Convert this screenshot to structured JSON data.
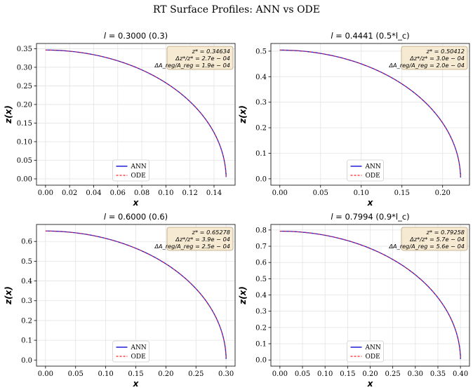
{
  "suptitle": "RT Surface Profiles: ANN vs ODE",
  "colors": {
    "ann": "#1f1fd6",
    "ode": "#ff2020",
    "infobox_bg": "#f7ead2",
    "infobox_border": "#b8a27a",
    "grid": "#e3e3e3"
  },
  "legend": {
    "ann": "ANN",
    "ode": "ODE"
  },
  "chart_data": [
    {
      "type": "line",
      "title": "$l = 0.3000$ (0.3)",
      "title_text": "l = 0.3000 (0.3)",
      "title_var": "l",
      "title_rest": " = 0.3000 (0.3)",
      "xlabel": "x",
      "ylabel": "z(x)",
      "xlim": [
        -0.0075,
        0.1575
      ],
      "ylim": [
        -0.017,
        0.364
      ],
      "xticks": [
        0.0,
        0.02,
        0.04,
        0.06,
        0.08,
        0.1,
        0.12,
        0.14
      ],
      "xtick_labels": [
        "0.00",
        "0.02",
        "0.04",
        "0.06",
        "0.08",
        "0.10",
        "0.12",
        "0.14"
      ],
      "yticks": [
        0.0,
        0.05,
        0.1,
        0.15,
        0.2,
        0.25,
        0.3,
        0.35
      ],
      "ytick_labels": [
        "0.00",
        "0.05",
        "0.10",
        "0.15",
        "0.20",
        "0.25",
        "0.30",
        "0.35"
      ],
      "half_width": 0.15,
      "z_star": 0.34634,
      "z_end": 0.005,
      "series": [
        {
          "name": "ANN"
        },
        {
          "name": "ODE"
        }
      ],
      "info": [
        "z* = 0.34634",
        "Δz*/z* = 2.7e − 04",
        "ΔA_reg/A_reg = 1.9e − 04"
      ]
    },
    {
      "type": "line",
      "title": "$l = 0.4441$ (0.5*l_c)",
      "title_text": "l = 0.4441 (0.5*l_c)",
      "title_var": "l",
      "title_rest": " = 0.4441 (0.5*l_c)",
      "xlabel": "x",
      "ylabel": "z(x)",
      "xlim": [
        -0.011,
        0.233
      ],
      "ylim": [
        -0.025,
        0.53
      ],
      "xticks": [
        0.0,
        0.05,
        0.1,
        0.15,
        0.2
      ],
      "xtick_labels": [
        "0.00",
        "0.05",
        "0.10",
        "0.15",
        "0.20"
      ],
      "yticks": [
        0.0,
        0.1,
        0.2,
        0.3,
        0.4,
        0.5
      ],
      "ytick_labels": [
        "0.0",
        "0.1",
        "0.2",
        "0.3",
        "0.4",
        "0.5"
      ],
      "half_width": 0.222,
      "z_star": 0.50412,
      "z_end": 0.005,
      "series": [
        {
          "name": "ANN"
        },
        {
          "name": "ODE"
        }
      ],
      "info": [
        "z* = 0.50412",
        "Δz*/z* = 3.0e − 04",
        "ΔA_reg/A_reg = 2.0e − 04"
      ]
    },
    {
      "type": "line",
      "title": "$l = 0.6000$ (0.6)",
      "title_text": "l = 0.6000 (0.6)",
      "title_var": "l",
      "title_rest": " = 0.6000 (0.6)",
      "xlabel": "x",
      "ylabel": "z(x)",
      "xlim": [
        -0.015,
        0.315
      ],
      "ylim": [
        -0.031,
        0.686
      ],
      "xticks": [
        0.0,
        0.05,
        0.1,
        0.15,
        0.2,
        0.25,
        0.3
      ],
      "xtick_labels": [
        "0.00",
        "0.05",
        "0.10",
        "0.15",
        "0.20",
        "0.25",
        "0.30"
      ],
      "yticks": [
        0.0,
        0.1,
        0.2,
        0.3,
        0.4,
        0.5,
        0.6
      ],
      "ytick_labels": [
        "0.0",
        "0.1",
        "0.2",
        "0.3",
        "0.4",
        "0.5",
        "0.6"
      ],
      "half_width": 0.3,
      "z_star": 0.65278,
      "z_end": 0.005,
      "series": [
        {
          "name": "ANN"
        },
        {
          "name": "ODE"
        }
      ],
      "info": [
        "z* = 0.65278",
        "Δz*/z* = 3.9e − 04",
        "ΔA_reg/A_reg = 2.5e − 04"
      ]
    },
    {
      "type": "line",
      "title": "$l = 0.7994$ (0.9*l_c)",
      "title_text": "l = 0.7994 (0.9*l_c)",
      "title_var": "l",
      "title_rest": " = 0.7994 (0.9*l_c)",
      "xlabel": "x",
      "ylabel": "z(x)",
      "xlim": [
        -0.02,
        0.42
      ],
      "ylim": [
        -0.038,
        0.834
      ],
      "xticks": [
        0.0,
        0.05,
        0.1,
        0.15,
        0.2,
        0.25,
        0.3,
        0.35,
        0.4
      ],
      "xtick_labels": [
        "0.00",
        "0.05",
        "0.10",
        "0.15",
        "0.20",
        "0.25",
        "0.30",
        "0.35",
        "0.40"
      ],
      "yticks": [
        0.0,
        0.1,
        0.2,
        0.3,
        0.4,
        0.5,
        0.6,
        0.7,
        0.8
      ],
      "ytick_labels": [
        "0.0",
        "0.1",
        "0.2",
        "0.3",
        "0.4",
        "0.5",
        "0.6",
        "0.7",
        "0.8"
      ],
      "half_width": 0.4,
      "z_star": 0.79258,
      "z_end": 0.005,
      "series": [
        {
          "name": "ANN"
        },
        {
          "name": "ODE"
        }
      ],
      "info": [
        "z* = 0.79258",
        "Δz*/z* = 5.7e − 04",
        "ΔA_reg/A_reg = 5.6e − 04"
      ]
    }
  ]
}
